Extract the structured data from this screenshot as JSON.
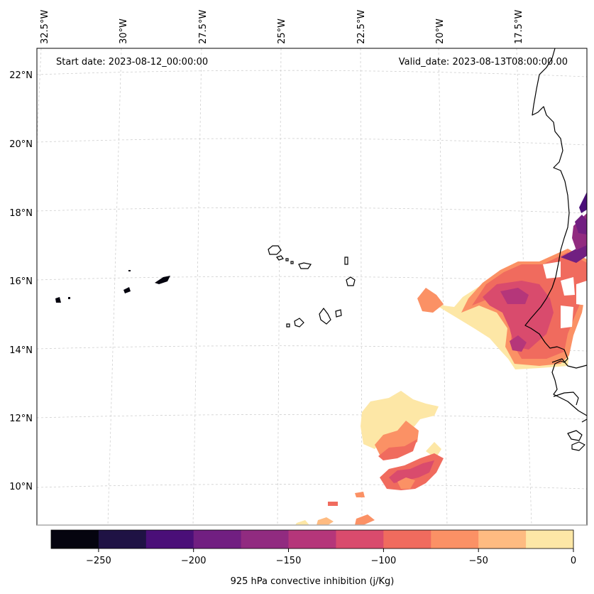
{
  "map": {
    "start_date_label": "Start date: 2023-08-12_00:00:00",
    "valid_date_label": "Valid_date: 2023-08-13T08:00:00.00",
    "lon_labels": [
      "32.5°W",
      "30°W",
      "27.5°W",
      "25°W",
      "22.5°W",
      "20°W",
      "17.5°W"
    ],
    "lat_labels": [
      "22°N",
      "20°N",
      "18°N",
      "16°N",
      "14°N",
      "12°N",
      "10°N"
    ]
  },
  "colorbar": {
    "title": "925 hPa convective inhibition (j/Kg)",
    "tick_labels": [
      "−250",
      "−200",
      "−150",
      "−100",
      "−50",
      "0"
    ],
    "levels": [
      -275,
      -250,
      -225,
      -200,
      -175,
      -150,
      -125,
      -100,
      -75,
      -50,
      -25,
      0
    ],
    "colors": [
      "#05040f",
      "#1f1244",
      "#4a0f78",
      "#711f81",
      "#912b80",
      "#b5367a",
      "#d94b6d",
      "#f06b5e",
      "#fb9165",
      "#febb81",
      "#fde7a6"
    ]
  }
}
